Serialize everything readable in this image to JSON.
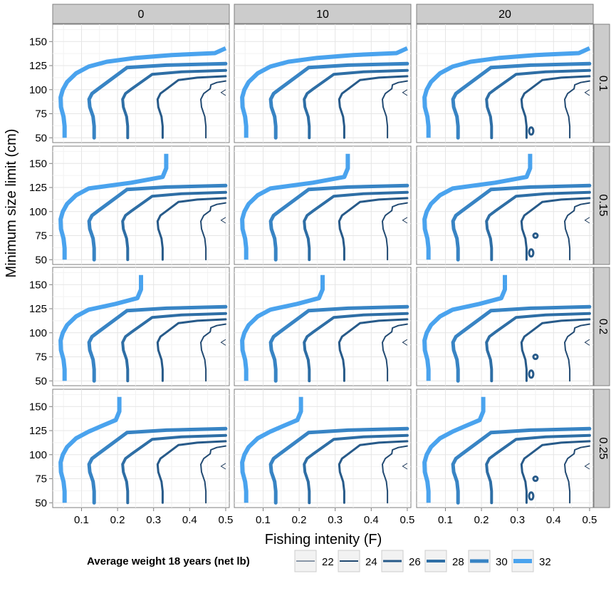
{
  "chart_data": {
    "type": "line",
    "subtype": "faceted contour plot",
    "xlabel": "Fishing intenity (F)",
    "ylabel": "Minimum size limit (cm)",
    "xlim": [
      0.02,
      0.51
    ],
    "ylim": [
      45,
      168
    ],
    "x_ticks": [
      0.1,
      0.2,
      0.3,
      0.4,
      0.5
    ],
    "x_tick_labels": [
      "0.1",
      "0.2",
      "0.3",
      "0.4",
      "0.5"
    ],
    "y_ticks": [
      50,
      75,
      100,
      125,
      150
    ],
    "y_tick_labels": [
      "50",
      "75",
      "100",
      "125",
      "150"
    ],
    "grid": true,
    "col_facets": [
      "0",
      "10",
      "20"
    ],
    "row_facets": [
      "0.1",
      "0.15",
      "0.2",
      "0.25"
    ],
    "legend": {
      "title": "Average weight 18 years (net lb)",
      "position": "bottom",
      "items": [
        {
          "label": "22",
          "color": "#1f3b5c",
          "width": 1
        },
        {
          "label": "24",
          "color": "#224a72",
          "width": 2
        },
        {
          "label": "26",
          "color": "#275a89",
          "width": 3
        },
        {
          "label": "28",
          "color": "#2e6ea5",
          "width": 4
        },
        {
          "label": "30",
          "color": "#3884c4",
          "width": 5
        },
        {
          "label": "32",
          "color": "#4aa3ee",
          "width": 6
        }
      ]
    },
    "contour_bases": [
      {
        "level": "24",
        "x_base": 0.445,
        "y_top": 109,
        "x_top": 0.5
      },
      {
        "level": "26",
        "x_base": 0.325,
        "y_top": 114,
        "x_top": 0.5
      },
      {
        "level": "28",
        "x_base": 0.228,
        "y_top": 120,
        "x_top": 0.5
      },
      {
        "level": "30",
        "x_base": 0.135,
        "y_top": 127,
        "x_top": 0.5
      },
      {
        "level": "32",
        "x_base": 0.053,
        "y_top": 140,
        "x_top": 0.5
      }
    ],
    "plateau_32": {
      "row_facets": [
        "0.1",
        "0.15",
        "0.2",
        "0.25"
      ],
      "x_cap": [
        0.5,
        0.335,
        0.265,
        0.205
      ],
      "y_top": 160
    }
  }
}
